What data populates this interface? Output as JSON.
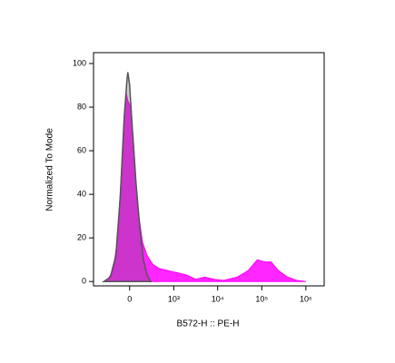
{
  "chart_data": {
    "type": "area",
    "x_label": "B572-H :: PE-H",
    "y_label": "Normalized To Mode",
    "xscale": "biexponential",
    "xlim": [
      -650,
      2600000
    ],
    "xticks": [
      0,
      {
        "value": 1000,
        "label": "10³"
      },
      {
        "value": 10000,
        "label": "10⁴"
      },
      {
        "value": 100000,
        "label": "10⁵"
      },
      {
        "value": 1000000,
        "label": "10⁶"
      }
    ],
    "ylim": [
      -2,
      105
    ],
    "yticks": [
      0,
      20,
      40,
      60,
      80,
      100
    ],
    "series": [
      {
        "color": "#ff00ff",
        "x": [
          -304,
          -197,
          -134,
          -90,
          -59,
          -39,
          -19,
          10,
          39,
          69,
          101,
          146,
          210,
          304,
          445,
          744,
          1216,
          1972,
          3190,
          5160,
          8350,
          13500,
          27700,
          49100,
          79400,
          116000,
          163000,
          239000,
          386000,
          624000,
          1000000
        ],
        "values": [
          0,
          5,
          20,
          50,
          75,
          87,
          83,
          80,
          65,
          45,
          30,
          18,
          12,
          8,
          6,
          5,
          4,
          3,
          1,
          2,
          1,
          0.5,
          2,
          5,
          10,
          9,
          9,
          5,
          2,
          0.5,
          0
        ]
      },
      {
        "color": "#555555",
        "x": [
          -362,
          -240,
          -158,
          -101,
          -59,
          -29,
          -19,
          0,
          29,
          69,
          112,
          158,
          210,
          271
        ],
        "values": [
          0,
          2,
          12,
          40,
          75,
          92,
          96,
          90,
          70,
          45,
          25,
          10,
          3,
          0
        ]
      }
    ]
  }
}
